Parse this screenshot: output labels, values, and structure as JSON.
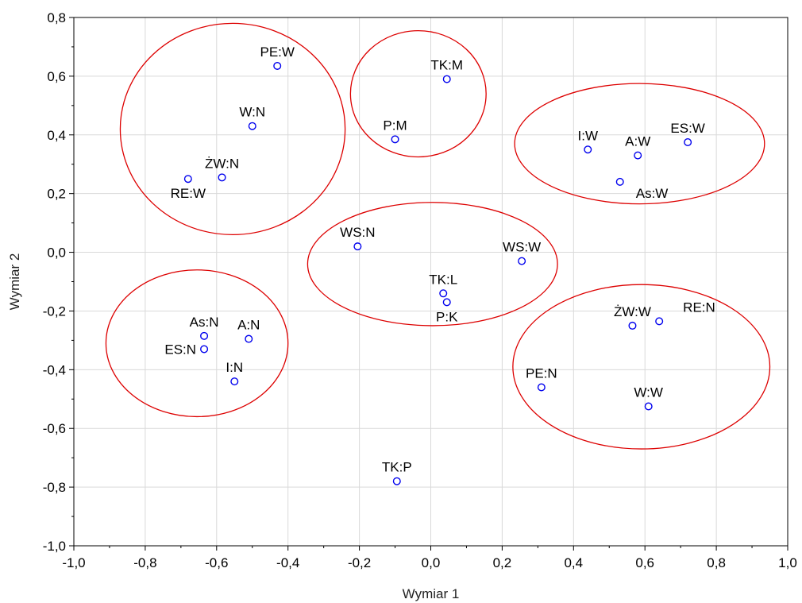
{
  "chart_data": {
    "type": "scatter",
    "title": "",
    "xlabel": "Wymiar 1",
    "ylabel": "Wymiar 2",
    "xlim": [
      -1.0,
      1.0
    ],
    "ylim": [
      -1.0,
      0.8
    ],
    "xticks": [
      -1.0,
      -0.8,
      -0.6,
      -0.4,
      -0.2,
      0.0,
      0.2,
      0.4,
      0.6,
      0.8,
      1.0
    ],
    "yticks": [
      -1.0,
      -0.8,
      -0.6,
      -0.4,
      -0.2,
      0.0,
      0.2,
      0.4,
      0.6,
      0.8
    ],
    "xtick_labels": [
      "-1,0",
      "-0,8",
      "-0,6",
      "-0,4",
      "-0,2",
      "0,0",
      "0,2",
      "0,4",
      "0,6",
      "0,8",
      "1,0"
    ],
    "ytick_labels": [
      "-1,0",
      "-0,8",
      "-0,6",
      "-0,4",
      "-0,2",
      "0,0",
      "0,2",
      "0,4",
      "0,6",
      "0,8"
    ],
    "grid": true,
    "marker_color": "#0000ee",
    "ellipse_color": "#dd0000",
    "points": [
      {
        "label": "PE:W",
        "x": -0.43,
        "y": 0.635,
        "label_pos": "above"
      },
      {
        "label": "W:N",
        "x": -0.5,
        "y": 0.43,
        "label_pos": "above"
      },
      {
        "label": "ŻW:N",
        "x": -0.585,
        "y": 0.255,
        "label_pos": "above"
      },
      {
        "label": "RE:W",
        "x": -0.68,
        "y": 0.25,
        "label_pos": "below"
      },
      {
        "label": "TK:M",
        "x": 0.045,
        "y": 0.59,
        "label_pos": "above"
      },
      {
        "label": "P:M",
        "x": -0.1,
        "y": 0.385,
        "label_pos": "above"
      },
      {
        "label": "I:W",
        "x": 0.44,
        "y": 0.35,
        "label_pos": "above"
      },
      {
        "label": "A:W",
        "x": 0.58,
        "y": 0.33,
        "label_pos": "above"
      },
      {
        "label": "ES:W",
        "x": 0.72,
        "y": 0.375,
        "label_pos": "above"
      },
      {
        "label": "As:W",
        "x": 0.53,
        "y": 0.24,
        "label_pos": "below-right"
      },
      {
        "label": "WS:N",
        "x": -0.205,
        "y": 0.02,
        "label_pos": "above"
      },
      {
        "label": "WS:W",
        "x": 0.255,
        "y": -0.03,
        "label_pos": "above"
      },
      {
        "label": "TK:L",
        "x": 0.035,
        "y": -0.14,
        "label_pos": "above"
      },
      {
        "label": "P:K",
        "x": 0.045,
        "y": -0.17,
        "label_pos": "below"
      },
      {
        "label": "As:N",
        "x": -0.635,
        "y": -0.285,
        "label_pos": "above"
      },
      {
        "label": "A:N",
        "x": -0.51,
        "y": -0.295,
        "label_pos": "above"
      },
      {
        "label": "ES:N",
        "x": -0.635,
        "y": -0.33,
        "label_pos": "left"
      },
      {
        "label": "I:N",
        "x": -0.55,
        "y": -0.44,
        "label_pos": "above"
      },
      {
        "label": "ŻW:W",
        "x": 0.565,
        "y": -0.25,
        "label_pos": "above"
      },
      {
        "label": "RE:N",
        "x": 0.64,
        "y": -0.235,
        "label_pos": "above-right"
      },
      {
        "label": "PE:N",
        "x": 0.31,
        "y": -0.46,
        "label_pos": "above"
      },
      {
        "label": "W:W",
        "x": 0.61,
        "y": -0.525,
        "label_pos": "above"
      },
      {
        "label": "TK:P",
        "x": -0.095,
        "y": -0.78,
        "label_pos": "above"
      }
    ],
    "clusters": [
      {
        "name": "cluster-1",
        "cx": -0.555,
        "cy": 0.42,
        "rx": 0.315,
        "ry": 0.36
      },
      {
        "name": "cluster-2",
        "cx": -0.035,
        "cy": 0.54,
        "rx": 0.19,
        "ry": 0.215
      },
      {
        "name": "cluster-3",
        "cx": 0.585,
        "cy": 0.37,
        "rx": 0.35,
        "ry": 0.205
      },
      {
        "name": "cluster-4",
        "cx": 0.005,
        "cy": -0.04,
        "rx": 0.35,
        "ry": 0.21
      },
      {
        "name": "cluster-5",
        "cx": -0.655,
        "cy": -0.31,
        "rx": 0.255,
        "ry": 0.25
      },
      {
        "name": "cluster-6",
        "cx": 0.59,
        "cy": -0.39,
        "rx": 0.36,
        "ry": 0.28
      }
    ]
  }
}
